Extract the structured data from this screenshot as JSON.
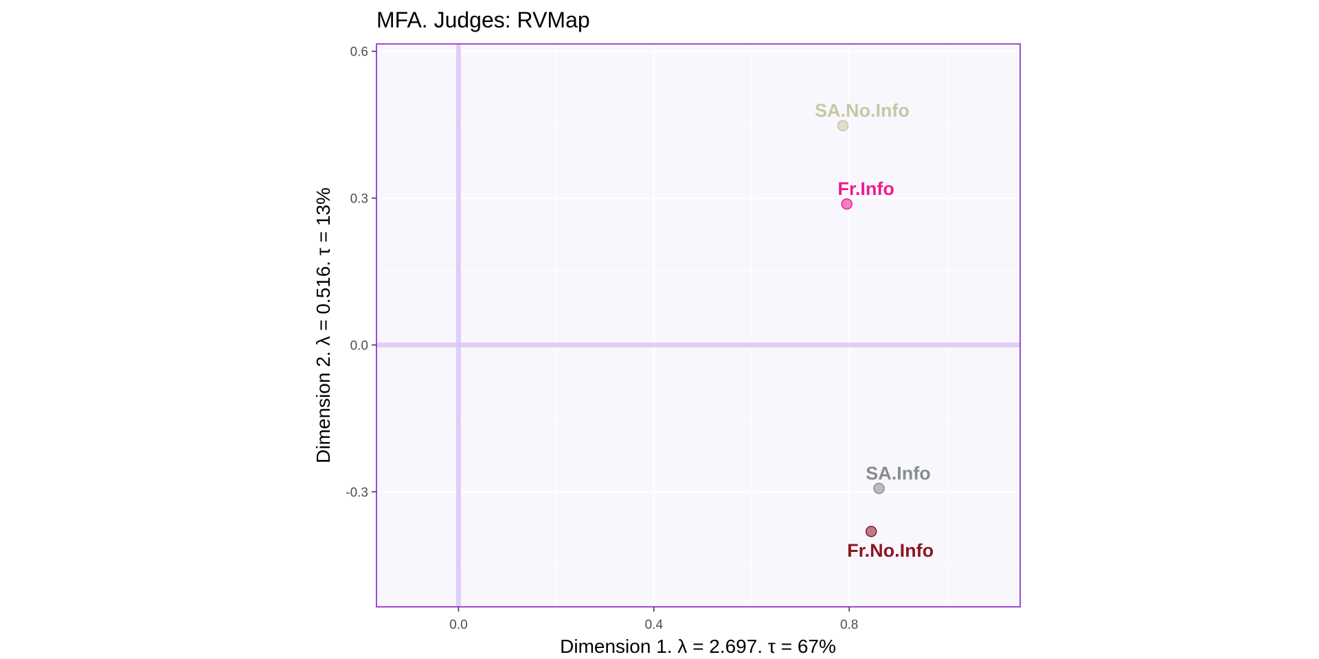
{
  "chart_data": {
    "type": "scatter",
    "title": "MFA. Judges: RVMap",
    "xlabel": "Dimension 1.   λ = 2.697.  τ = 67%",
    "ylabel": "Dimension 2.   λ = 0.516.  τ = 13%",
    "xlim": [
      -0.168,
      1.15
    ],
    "ylim": [
      -0.535,
      0.615
    ],
    "x_ticks": [
      0.0,
      0.4,
      0.8
    ],
    "x_tick_labels": [
      "0.0",
      "0.4",
      "0.8"
    ],
    "y_ticks": [
      -0.3,
      0.0,
      0.3,
      0.6
    ],
    "y_tick_labels": [
      "-0.3",
      "0.0",
      "0.3",
      "0.6"
    ],
    "grid": true,
    "points": [
      {
        "name": "SA.No.Info",
        "x": 0.787,
        "y": 0.448,
        "color": "#c8c6a4",
        "label_position": "above"
      },
      {
        "name": "Fr.Info",
        "x": 0.795,
        "y": 0.288,
        "color": "#ee1c8e",
        "label_position": "above"
      },
      {
        "name": "SA.Info",
        "x": 0.861,
        "y": -0.293,
        "color": "#868e88",
        "label_position": "above"
      },
      {
        "name": "Fr.No.Info",
        "x": 0.845,
        "y": -0.381,
        "color": "#8b1722",
        "label_position": "below"
      }
    ]
  },
  "colors": {
    "panel_background": "#f9f7fe",
    "panel_border": "#a447d0",
    "origin_lines": "#dcc6f6",
    "grid": "#ffffff"
  }
}
